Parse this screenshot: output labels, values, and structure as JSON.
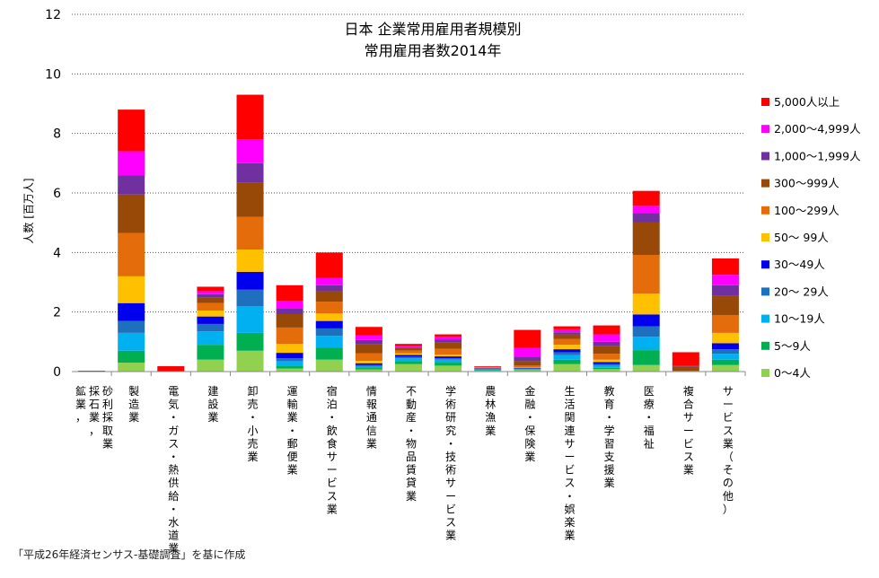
{
  "chart_data": {
    "type": "bar",
    "stacked": true,
    "title": "日本 企業常用雇用者規模別",
    "subtitle": "常用雇用者数2014年",
    "ylabel": "人数 [百万人]",
    "ylim": [
      0,
      12
    ],
    "yticks": [
      0,
      2,
      4,
      6,
      8,
      10,
      12
    ],
    "grid": true,
    "legend_position": "right",
    "categories": [
      "鉱業，採石業，砂利採取業",
      "製造業",
      "電気・ガス・熱供給・水道業",
      "建設業",
      "卸売・小売業",
      "運輸業・郵便業",
      "宿泊・飲食サービス業",
      "情報通信業",
      "不動産・物品賃貸業",
      "学術研究・技術サービス業",
      "農林漁業",
      "金融・保険業",
      "生活関連サービス・娯楽業",
      "教育・学習支援業",
      "医療・福祉",
      "複合サービス業",
      "サービス業（その他）"
    ],
    "series": [
      {
        "name": "0～4人",
        "color": "#92d050",
        "values": [
          0.0,
          0.3,
          0.0,
          0.4,
          0.7,
          0.1,
          0.4,
          0.07,
          0.25,
          0.2,
          0.03,
          0.05,
          0.25,
          0.08,
          0.22,
          0.0,
          0.22
        ]
      },
      {
        "name": "5～9人",
        "color": "#00b050",
        "values": [
          0.0,
          0.4,
          0.0,
          0.5,
          0.6,
          0.1,
          0.4,
          0.05,
          0.1,
          0.1,
          0.02,
          0.02,
          0.15,
          0.05,
          0.5,
          0.0,
          0.18
        ]
      },
      {
        "name": "10～19人",
        "color": "#00b0f0",
        "values": [
          0.0,
          0.6,
          0.0,
          0.45,
          0.9,
          0.15,
          0.4,
          0.05,
          0.1,
          0.1,
          0.02,
          0.02,
          0.15,
          0.07,
          0.45,
          0.0,
          0.2
        ]
      },
      {
        "name": "20～ 29人",
        "color": "#1f6fbf",
        "values": [
          0.0,
          0.4,
          0.0,
          0.25,
          0.55,
          0.1,
          0.25,
          0.05,
          0.05,
          0.05,
          0.02,
          0.02,
          0.1,
          0.05,
          0.35,
          0.0,
          0.15
        ]
      },
      {
        "name": "30～49人",
        "color": "#0000ee",
        "values": [
          0.0,
          0.6,
          0.0,
          0.25,
          0.6,
          0.18,
          0.25,
          0.06,
          0.06,
          0.06,
          0.02,
          0.02,
          0.1,
          0.07,
          0.4,
          0.0,
          0.2
        ]
      },
      {
        "name": "50～ 99人",
        "color": "#ffc000",
        "values": [
          0.0,
          0.9,
          0.0,
          0.2,
          0.75,
          0.3,
          0.25,
          0.08,
          0.05,
          0.06,
          0.02,
          0.02,
          0.15,
          0.08,
          0.7,
          0.0,
          0.35
        ]
      },
      {
        "name": "100～299人",
        "color": "#e46c0a",
        "values": [
          0.0,
          1.45,
          0.0,
          0.25,
          1.1,
          0.55,
          0.4,
          0.25,
          0.1,
          0.2,
          0.02,
          0.05,
          0.2,
          0.2,
          1.3,
          0.02,
          0.6
        ]
      },
      {
        "name": "300～999人",
        "color": "#984807",
        "values": [
          0.0,
          1.3,
          0.0,
          0.2,
          1.15,
          0.45,
          0.35,
          0.3,
          0.08,
          0.2,
          0.01,
          0.15,
          0.15,
          0.25,
          1.1,
          0.15,
          0.65
        ]
      },
      {
        "name": "1,000～1,999人",
        "color": "#7030a0",
        "values": [
          0.0,
          0.65,
          0.0,
          0.1,
          0.65,
          0.2,
          0.2,
          0.15,
          0.03,
          0.1,
          0.0,
          0.15,
          0.07,
          0.15,
          0.3,
          0.03,
          0.35
        ]
      },
      {
        "name": "2,000～4,999人",
        "color": "#ff00ff",
        "values": [
          0.0,
          0.8,
          0.0,
          0.1,
          0.8,
          0.25,
          0.25,
          0.15,
          0.04,
          0.1,
          0.0,
          0.3,
          0.1,
          0.25,
          0.25,
          0.0,
          0.35
        ]
      },
      {
        "name": "5,000人以上",
        "color": "#ff0000",
        "values": [
          0.03,
          1.4,
          0.18,
          0.15,
          1.5,
          0.52,
          0.85,
          0.29,
          0.07,
          0.08,
          0.02,
          0.6,
          0.1,
          0.3,
          0.5,
          0.45,
          0.55
        ]
      }
    ]
  },
  "footer": {
    "source": "「平成26年経済センサス-基礎調査」を基に作成"
  }
}
